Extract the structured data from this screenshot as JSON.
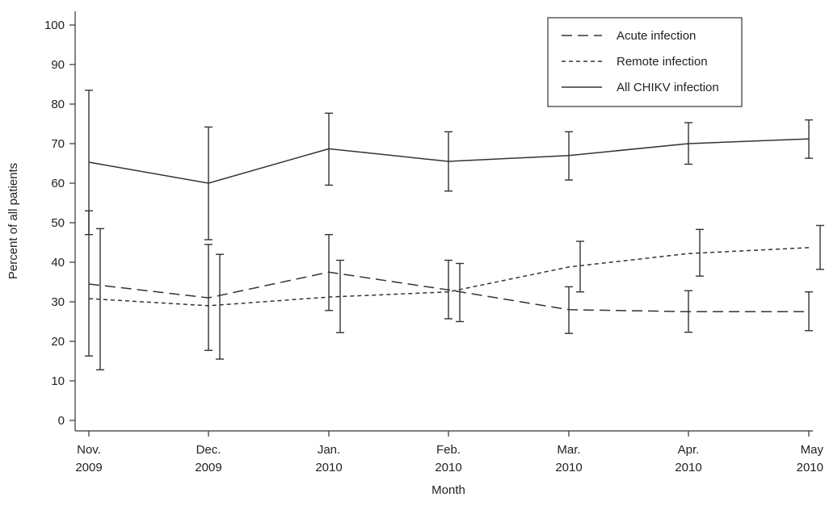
{
  "chart_data": {
    "type": "line",
    "xlabel": "Month",
    "ylabel": "Percent of all patients",
    "ylim": [
      0,
      100
    ],
    "yticks": [
      0,
      10,
      20,
      30,
      40,
      50,
      60,
      70,
      80,
      90,
      100
    ],
    "categories": [
      {
        "line1": "Nov.",
        "line2": "2009"
      },
      {
        "line1": "Dec.",
        "line2": "2009"
      },
      {
        "line1": "Jan.",
        "line2": "2010"
      },
      {
        "line1": "Feb.",
        "line2": "2010"
      },
      {
        "line1": "Mar.",
        "line2": "2010"
      },
      {
        "line1": "Apr.",
        "line2": "2010"
      },
      {
        "line1": "May",
        "line2": "2010"
      }
    ],
    "grid": false,
    "legend_position": "top-right",
    "series": [
      {
        "name": "Acute infection",
        "style": "long-dash",
        "values": [
          34.5,
          31,
          37.5,
          33,
          28,
          27.5,
          27.5
        ],
        "lower": [
          16.3,
          17.7,
          27.8,
          25.7,
          22,
          22.3,
          22.7
        ],
        "upper": [
          53,
          44.5,
          47,
          40.5,
          33.8,
          32.8,
          32.5
        ]
      },
      {
        "name": "Remote infection",
        "style": "short-dash",
        "values": [
          30.8,
          29,
          31.2,
          32.5,
          38.8,
          42.2,
          43.7
        ],
        "lower": [
          12.8,
          15.5,
          22.2,
          25,
          32.5,
          36.5,
          38.2
        ],
        "upper": [
          48.5,
          42,
          40.5,
          39.7,
          45.3,
          48.3,
          49.3
        ]
      },
      {
        "name": "All CHIKV infection",
        "style": "solid",
        "values": [
          65.3,
          60,
          68.7,
          65.5,
          67,
          70,
          71.2
        ],
        "lower": [
          47,
          45.7,
          59.5,
          58,
          60.8,
          64.8,
          66.3
        ],
        "upper": [
          83.5,
          74.2,
          77.7,
          73,
          73,
          75.3,
          76
        ]
      }
    ]
  }
}
